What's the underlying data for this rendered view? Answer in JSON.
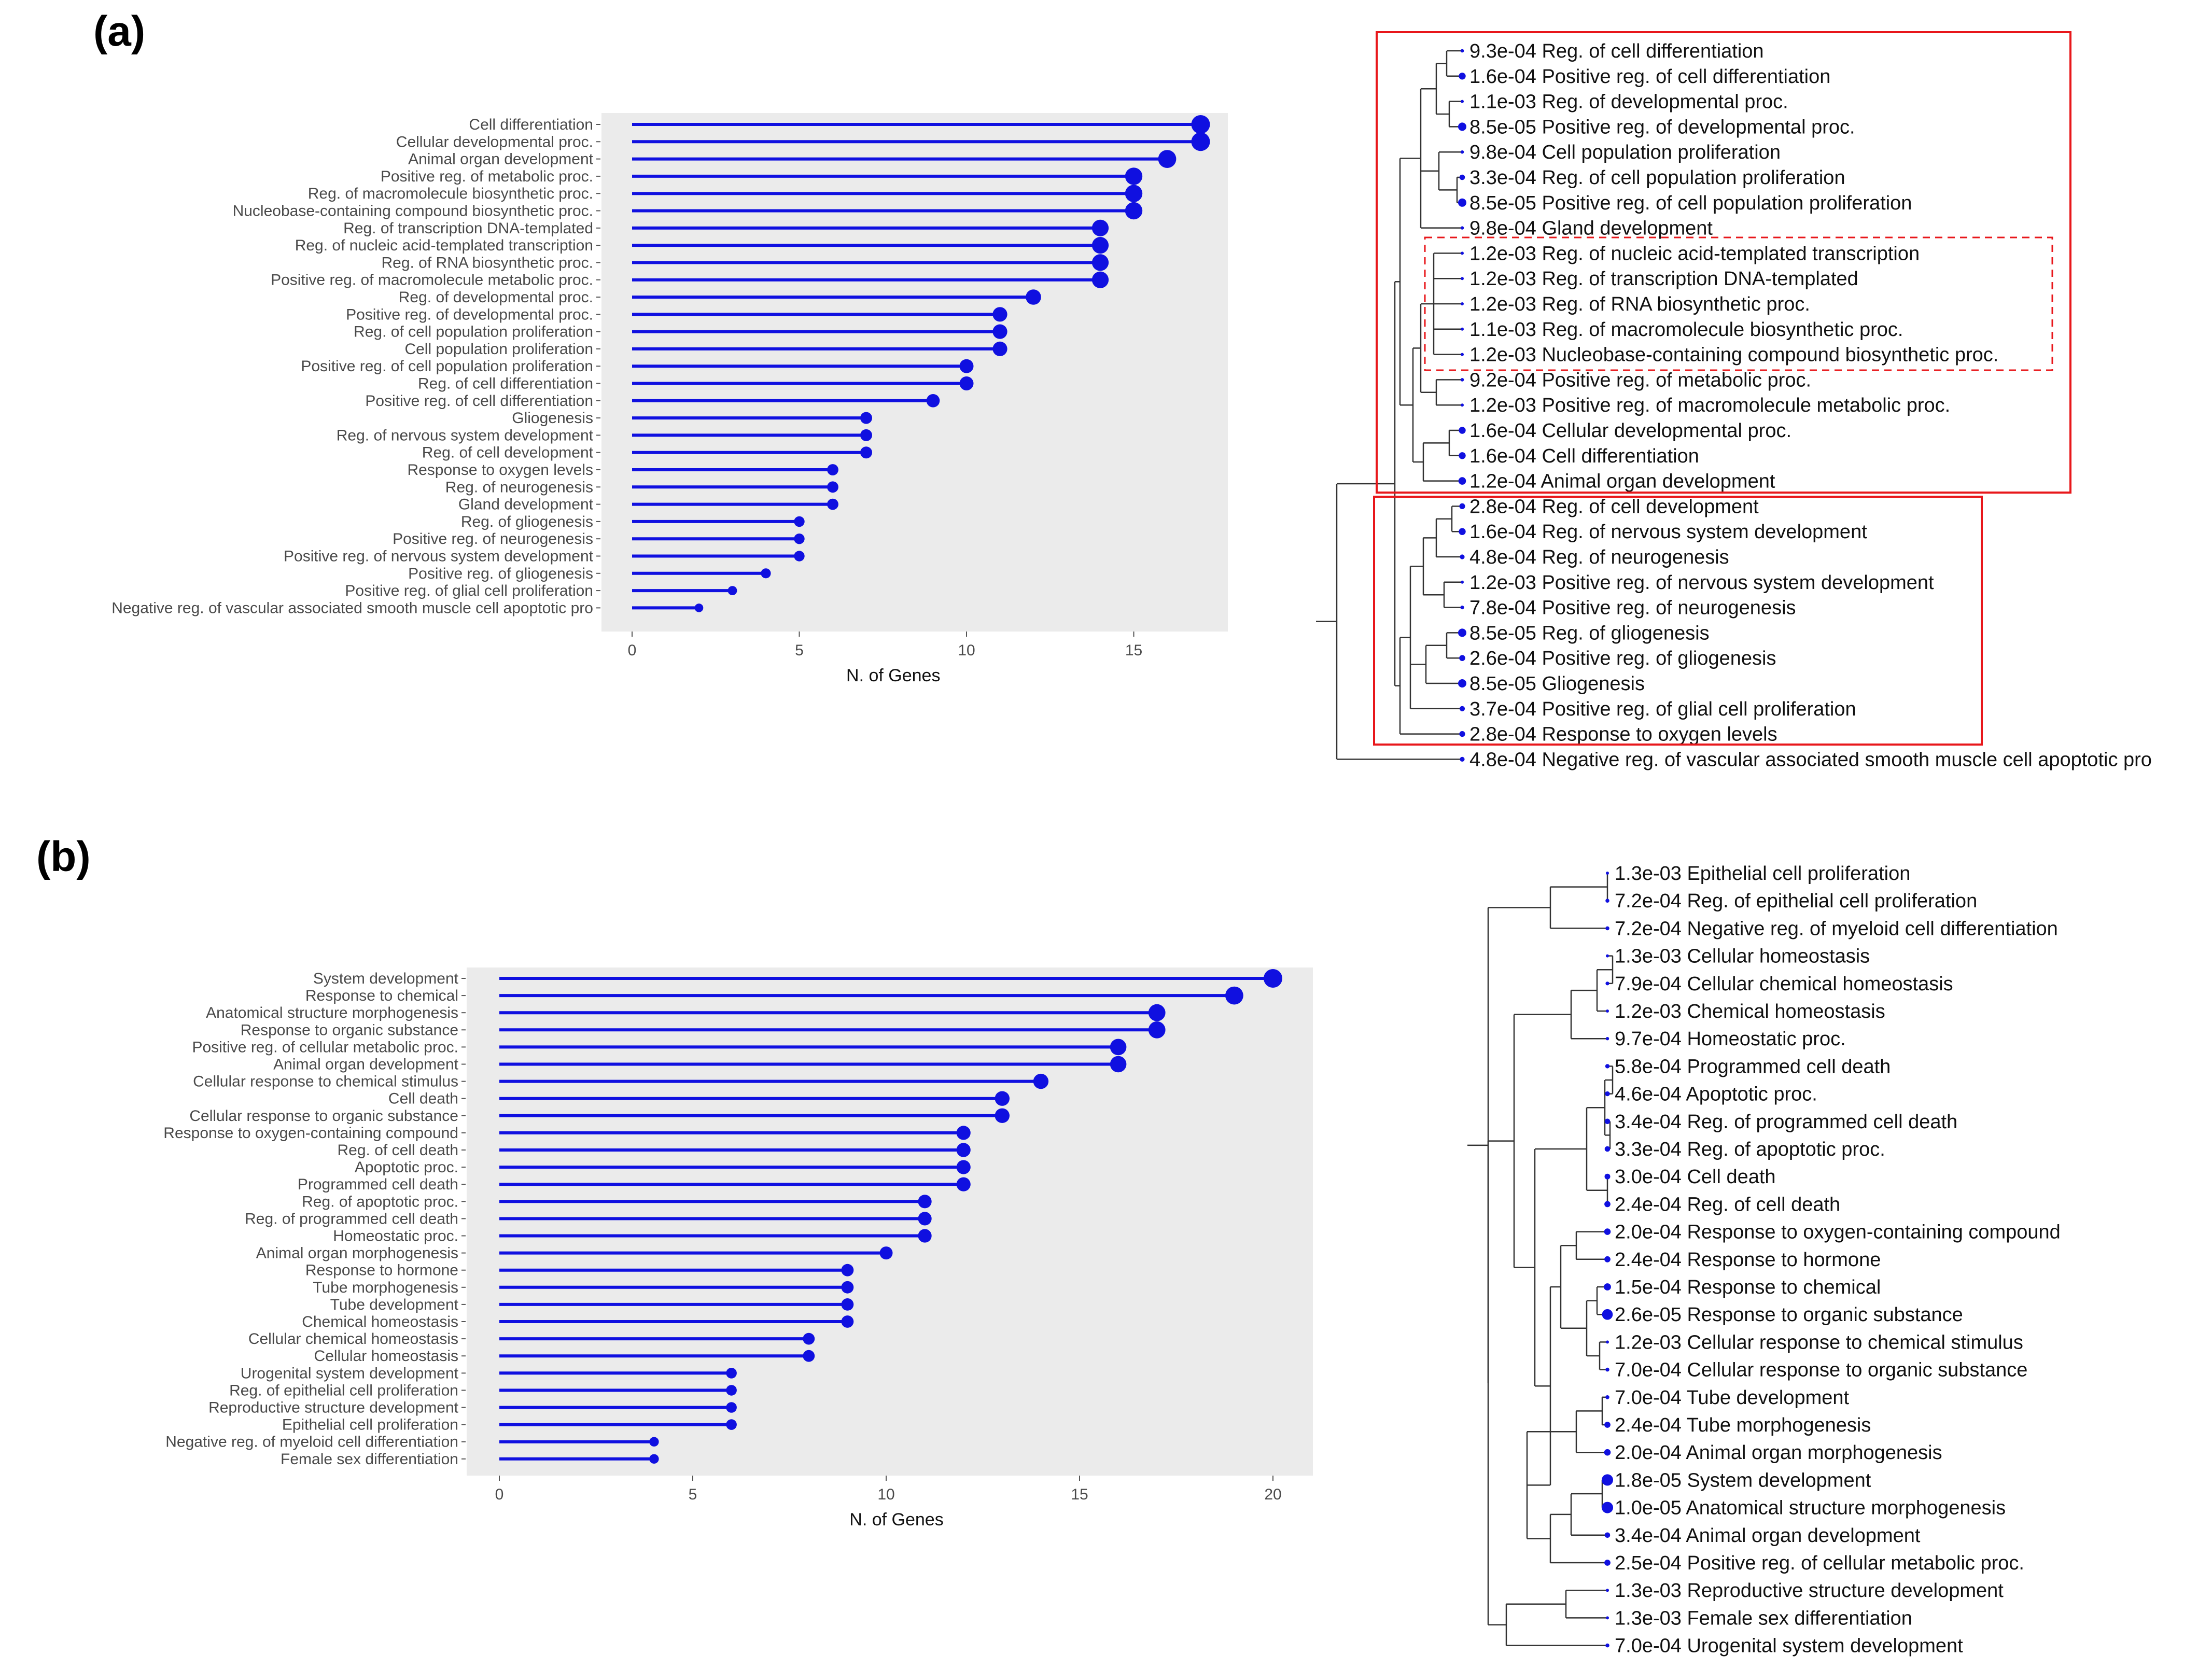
{
  "colors": {
    "lollipop": "#1010e0",
    "panel_bg": "#ebebeb",
    "highlight_box": "#e8171b",
    "tree_line": "#333333",
    "text": "#111111"
  },
  "panel_labels": [
    "(a)",
    "(b)"
  ],
  "chart_data": [
    {
      "type": "lollipop",
      "panel": "(a)",
      "title": "",
      "xlabel": "N. of Genes",
      "ylabel": "",
      "xlim": [
        0,
        18
      ],
      "xticks": [
        0,
        5,
        10,
        15
      ],
      "grid": false,
      "categories": [
        "Cell differentiation",
        "Cellular developmental proc.",
        "Animal organ development",
        "Positive reg. of metabolic proc.",
        "Reg. of macromolecule biosynthetic proc.",
        "Nucleobase-containing compound biosynthetic proc.",
        "Reg. of transcription DNA-templated",
        "Reg. of nucleic acid-templated transcription",
        "Reg. of RNA biosynthetic proc.",
        "Positive reg. of macromolecule metabolic proc.",
        "Reg. of developmental proc.",
        "Positive reg. of developmental proc.",
        "Reg. of cell population proliferation",
        "Cell population proliferation",
        "Positive reg. of cell population proliferation",
        "Reg. of cell differentiation",
        "Positive reg. of cell differentiation",
        "Gliogenesis",
        "Reg. of nervous system development",
        "Reg. of cell development",
        "Response to oxygen levels",
        "Reg. of neurogenesis",
        "Gland development",
        "Reg. of gliogenesis",
        "Positive reg. of neurogenesis",
        "Positive reg. of nervous system development",
        "Positive reg. of gliogenesis",
        "Positive reg. of glial cell proliferation",
        "Negative reg. of vascular associated smooth muscle cell apoptotic pro"
      ],
      "values": [
        17,
        17,
        16,
        15,
        15,
        15,
        14,
        14,
        14,
        14,
        12,
        11,
        11,
        11,
        10,
        10,
        9,
        7,
        7,
        7,
        6,
        6,
        6,
        5,
        5,
        5,
        4,
        3,
        2
      ]
    },
    {
      "type": "lollipop",
      "panel": "(b)",
      "title": "",
      "xlabel": "N. of Genes",
      "ylabel": "",
      "xlim": [
        0,
        21
      ],
      "xticks": [
        0,
        5,
        10,
        15,
        20
      ],
      "grid": false,
      "categories": [
        "System development",
        "Response to chemical",
        "Anatomical structure morphogenesis",
        "Response to organic substance",
        "Positive reg. of cellular metabolic proc.",
        "Animal organ development",
        "Cellular response to chemical stimulus",
        "Cell death",
        "Cellular response to organic substance",
        "Response to oxygen-containing compound",
        "Reg. of cell death",
        "Apoptotic proc.",
        "Programmed cell death",
        "Reg. of apoptotic proc.",
        "Reg. of programmed cell death",
        "Homeostatic proc.",
        "Animal organ morphogenesis",
        "Response to hormone",
        "Tube morphogenesis",
        "Tube development",
        "Chemical homeostasis",
        "Cellular chemical homeostasis",
        "Cellular homeostasis",
        "Urogenital system development",
        "Reg. of epithelial cell proliferation",
        "Reproductive structure development",
        "Epithelial cell proliferation",
        "Negative reg. of myeloid cell differentiation",
        "Female sex differentiation"
      ],
      "values": [
        20,
        19,
        17,
        17,
        16,
        16,
        14,
        13,
        13,
        12,
        12,
        12,
        12,
        11,
        11,
        11,
        10,
        9,
        9,
        9,
        9,
        8,
        8,
        6,
        6,
        6,
        6,
        4,
        4
      ]
    }
  ],
  "tree_data": [
    {
      "panel": "(a)",
      "leaves": [
        {
          "pvalue": "9.3e-04",
          "label": "Reg. of cell differentiation"
        },
        {
          "pvalue": "1.6e-04",
          "label": "Positive reg. of cell differentiation"
        },
        {
          "pvalue": "1.1e-03",
          "label": "Reg. of developmental proc."
        },
        {
          "pvalue": "8.5e-05",
          "label": "Positive reg. of developmental proc."
        },
        {
          "pvalue": "9.8e-04",
          "label": "Cell population proliferation"
        },
        {
          "pvalue": "3.3e-04",
          "label": "Reg. of cell population proliferation"
        },
        {
          "pvalue": "8.5e-05",
          "label": "Positive reg. of cell population proliferation"
        },
        {
          "pvalue": "9.8e-04",
          "label": "Gland development"
        },
        {
          "pvalue": "1.2e-03",
          "label": "Reg. of nucleic acid-templated transcription"
        },
        {
          "pvalue": "1.2e-03",
          "label": "Reg. of transcription DNA-templated"
        },
        {
          "pvalue": "1.2e-03",
          "label": "Reg. of RNA biosynthetic proc."
        },
        {
          "pvalue": "1.1e-03",
          "label": "Reg. of macromolecule biosynthetic proc."
        },
        {
          "pvalue": "1.2e-03",
          "label": "Nucleobase-containing compound biosynthetic proc."
        },
        {
          "pvalue": "9.2e-04",
          "label": "Positive reg. of metabolic proc."
        },
        {
          "pvalue": "1.2e-03",
          "label": "Positive reg. of macromolecule metabolic proc."
        },
        {
          "pvalue": "1.6e-04",
          "label": "Cellular developmental proc."
        },
        {
          "pvalue": "1.6e-04",
          "label": "Cell differentiation"
        },
        {
          "pvalue": "1.2e-04",
          "label": "Animal organ development"
        },
        {
          "pvalue": "2.8e-04",
          "label": "Reg. of cell development"
        },
        {
          "pvalue": "1.6e-04",
          "label": "Reg. of nervous system development"
        },
        {
          "pvalue": "4.8e-04",
          "label": "Reg. of neurogenesis"
        },
        {
          "pvalue": "1.2e-03",
          "label": "Positive reg. of nervous system development"
        },
        {
          "pvalue": "7.8e-04",
          "label": "Positive reg. of neurogenesis"
        },
        {
          "pvalue": "8.5e-05",
          "label": "Reg. of gliogenesis"
        },
        {
          "pvalue": "2.6e-04",
          "label": "Positive reg. of gliogenesis"
        },
        {
          "pvalue": "8.5e-05",
          "label": "Gliogenesis"
        },
        {
          "pvalue": "3.7e-04",
          "label": "Positive reg. of glial cell proliferation"
        },
        {
          "pvalue": "2.8e-04",
          "label": "Response to oxygen levels"
        },
        {
          "pvalue": "4.8e-04",
          "label": "Negative reg. of vascular associated smooth muscle cell apoptotic pro"
        }
      ]
    },
    {
      "panel": "(b)",
      "leaves": [
        {
          "pvalue": "1.3e-03",
          "label": "Epithelial cell proliferation"
        },
        {
          "pvalue": "7.2e-04",
          "label": "Reg. of epithelial cell proliferation"
        },
        {
          "pvalue": "7.2e-04",
          "label": "Negative reg. of myeloid cell differentiation"
        },
        {
          "pvalue": "1.3e-03",
          "label": "Cellular homeostasis"
        },
        {
          "pvalue": "7.9e-04",
          "label": "Cellular chemical homeostasis"
        },
        {
          "pvalue": "1.2e-03",
          "label": "Chemical homeostasis"
        },
        {
          "pvalue": "9.7e-04",
          "label": "Homeostatic proc."
        },
        {
          "pvalue": "5.8e-04",
          "label": "Programmed cell death"
        },
        {
          "pvalue": "4.6e-04",
          "label": "Apoptotic proc."
        },
        {
          "pvalue": "3.4e-04",
          "label": "Reg. of programmed cell death"
        },
        {
          "pvalue": "3.3e-04",
          "label": "Reg. of apoptotic proc."
        },
        {
          "pvalue": "3.0e-04",
          "label": "Cell death"
        },
        {
          "pvalue": "2.4e-04",
          "label": "Reg. of cell death"
        },
        {
          "pvalue": "2.0e-04",
          "label": "Response to oxygen-containing compound"
        },
        {
          "pvalue": "2.4e-04",
          "label": "Response to hormone"
        },
        {
          "pvalue": "1.5e-04",
          "label": "Response to chemical"
        },
        {
          "pvalue": "2.6e-05",
          "label": "Response to organic substance"
        },
        {
          "pvalue": "1.2e-03",
          "label": "Cellular response to chemical stimulus"
        },
        {
          "pvalue": "7.0e-04",
          "label": "Cellular response to organic substance"
        },
        {
          "pvalue": "7.0e-04",
          "label": "Tube development"
        },
        {
          "pvalue": "2.4e-04",
          "label": "Tube morphogenesis"
        },
        {
          "pvalue": "2.0e-04",
          "label": "Animal organ morphogenesis"
        },
        {
          "pvalue": "1.8e-05",
          "label": "System development"
        },
        {
          "pvalue": "1.0e-05",
          "label": "Anatomical structure morphogenesis"
        },
        {
          "pvalue": "3.4e-04",
          "label": "Animal organ development"
        },
        {
          "pvalue": "2.5e-04",
          "label": "Positive reg. of cellular metabolic proc."
        },
        {
          "pvalue": "1.3e-03",
          "label": "Reproductive structure development"
        },
        {
          "pvalue": "1.3e-03",
          "label": "Female sex differentiation"
        },
        {
          "pvalue": "7.0e-04",
          "label": "Urogenital system development"
        }
      ]
    }
  ]
}
